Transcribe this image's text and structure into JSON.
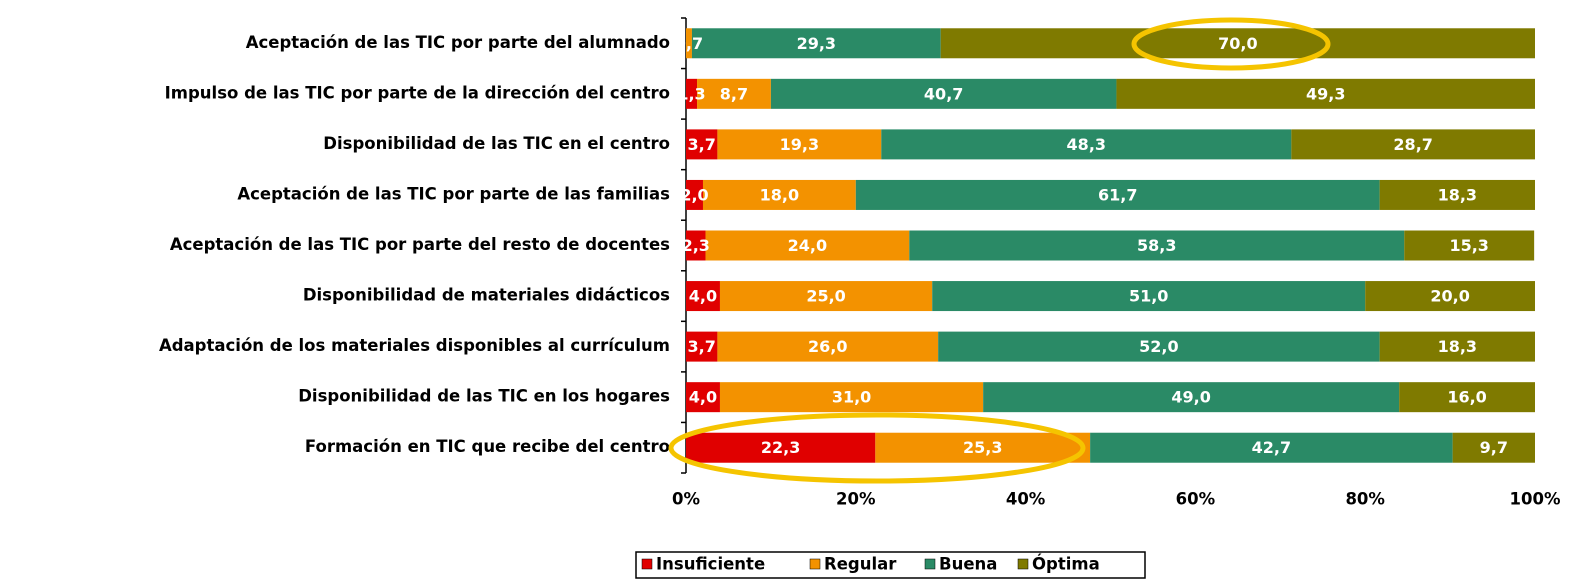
{
  "chart_data": {
    "type": "stacked_bar_horizontal",
    "categories": [
      "Aceptación de las TIC por parte del alumnado",
      "Impulso de las TIC por parte de la dirección del centro",
      "Disponibilidad de las TIC en el centro",
      "Aceptación de las TIC por parte de las familias",
      "Aceptación de las TIC por parte del resto de docentes",
      "Disponibilidad de materiales didácticos",
      "Adaptación de los materiales disponibles al currículum",
      "Disponibilidad de las TIC en los hogares",
      "Formación en TIC que recibe del centro"
    ],
    "series": [
      {
        "name": "Insuficiente",
        "color": "#e00000",
        "values": [
          0,
          1.3,
          3.7,
          2.0,
          2.3,
          4.0,
          3.7,
          4.0,
          22.3
        ],
        "value_labels": [
          null,
          "1,3",
          "3,7",
          "2,0",
          "2,3",
          "4,0",
          "3,7",
          "4,0",
          "22,3"
        ]
      },
      {
        "name": "Regular",
        "color": "#f39200",
        "values": [
          0.7,
          8.7,
          19.3,
          18.0,
          24.0,
          25.0,
          26.0,
          31.0,
          25.3
        ],
        "value_labels": [
          "0,7",
          "8,7",
          "19,3",
          "18,0",
          "24,0",
          "25,0",
          "26,0",
          "31,0",
          "25,3"
        ]
      },
      {
        "name": "Buena",
        "color": "#2a8a66",
        "values": [
          29.3,
          40.7,
          48.3,
          61.7,
          58.3,
          51.0,
          52.0,
          49.0,
          42.7
        ],
        "value_labels": [
          "29,3",
          "40,7",
          "48,3",
          "61,7",
          "58,3",
          "51,0",
          "52,0",
          "49,0",
          "42,7"
        ]
      },
      {
        "name": "Óptima",
        "color": "#7f7a00",
        "values": [
          70.0,
          49.3,
          28.7,
          18.3,
          15.3,
          20.0,
          18.3,
          16.0,
          9.7
        ],
        "value_labels": [
          "70,0",
          "49,3",
          "28,7",
          "18,3",
          "15,3",
          "20,0",
          "18,3",
          "16,0",
          "9,7"
        ]
      }
    ],
    "xlim": [
      0,
      100
    ],
    "xticks": [
      {
        "value": 0,
        "label": "0%"
      },
      {
        "value": 20,
        "label": "20%"
      },
      {
        "value": 40,
        "label": "40%"
      },
      {
        "value": 60,
        "label": "60%"
      },
      {
        "value": 80,
        "label": "80%"
      },
      {
        "value": 100,
        "label": "100%"
      }
    ],
    "legend": "bottom"
  }
}
